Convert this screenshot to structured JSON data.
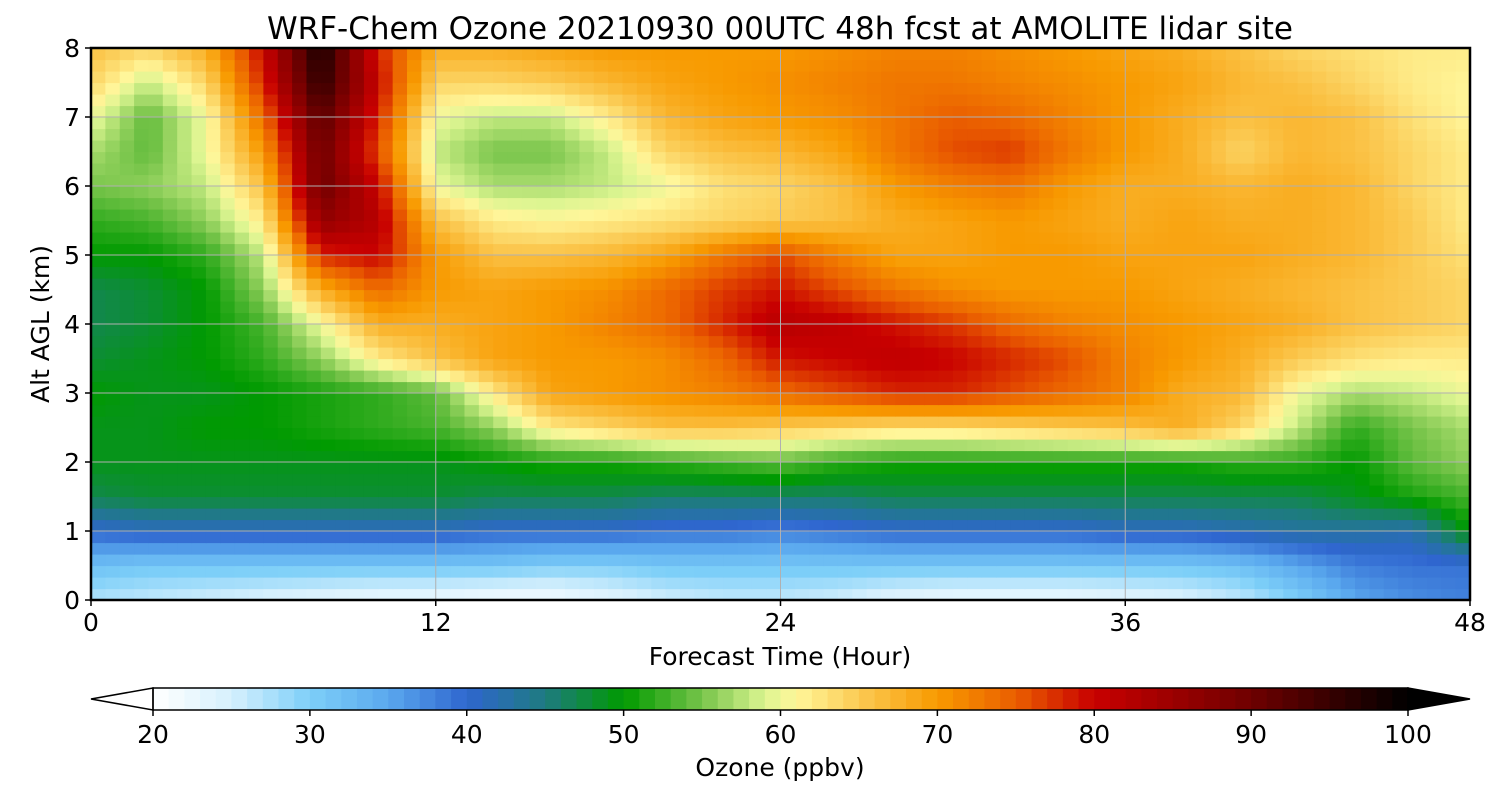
{
  "chart_data": {
    "type": "heatmap",
    "title": "WRF-Chem Ozone  20210930 00UTC 48h fcst at AMOLITE lidar site",
    "xlabel": "Forecast Time (Hour)",
    "ylabel": "Alt AGL (km)",
    "xlim": [
      0,
      48
    ],
    "ylim": [
      0,
      8
    ],
    "xticks": [
      "0",
      "12",
      "24",
      "36",
      "48"
    ],
    "yticks": [
      "0",
      "1",
      "2",
      "3",
      "4",
      "5",
      "6",
      "7",
      "8"
    ],
    "grid": true,
    "x": [
      0,
      2,
      4,
      6,
      8,
      10,
      12,
      14,
      16,
      18,
      20,
      22,
      24,
      26,
      28,
      30,
      32,
      34,
      36,
      38,
      40,
      42,
      44,
      46,
      48
    ],
    "y": [
      0,
      0.5,
      1,
      1.5,
      2,
      2.5,
      3,
      3.5,
      4,
      4.5,
      5,
      5.5,
      6,
      6.5,
      7,
      7.5,
      8
    ],
    "z": [
      [
        27,
        26,
        25,
        24,
        23,
        22,
        22,
        21,
        21,
        23,
        25,
        26,
        26,
        25,
        23,
        22,
        22,
        22,
        23,
        24,
        26,
        30,
        35,
        37,
        38
      ],
      [
        32,
        31,
        31,
        31,
        31,
        31,
        31,
        31,
        30,
        30,
        31,
        31,
        31,
        31,
        31,
        31,
        31,
        31,
        31,
        31,
        32,
        35,
        38,
        39,
        39
      ],
      [
        40,
        41,
        41,
        41,
        41,
        41,
        41,
        40,
        40,
        40,
        39,
        39,
        38,
        39,
        40,
        40,
        40,
        40,
        41,
        41,
        42,
        43,
        43,
        42,
        50
      ],
      [
        47,
        48,
        48,
        48,
        48,
        48,
        48,
        47,
        47,
        47,
        46,
        46,
        46,
        46,
        47,
        47,
        47,
        47,
        47,
        47,
        47,
        47,
        49,
        51,
        53
      ],
      [
        49,
        49,
        49,
        49,
        49,
        49,
        49,
        50,
        51,
        51,
        52,
        53,
        54,
        52,
        51,
        51,
        51,
        51,
        51,
        51,
        52,
        52,
        50,
        54,
        56
      ],
      [
        49,
        49,
        50,
        50,
        51,
        52,
        53,
        56,
        62,
        64,
        66,
        66,
        65,
        64,
        63,
        63,
        64,
        65,
        66,
        68,
        64,
        58,
        52,
        55,
        57
      ],
      [
        50,
        49,
        49,
        50,
        51,
        52,
        54,
        62,
        69,
        70,
        71,
        72,
        74,
        76,
        78,
        78,
        76,
        74,
        72,
        68,
        67,
        60,
        57,
        58,
        60
      ],
      [
        48,
        49,
        50,
        52,
        56,
        62,
        66,
        69,
        70,
        70,
        71,
        74,
        79,
        80,
        81,
        80,
        78,
        76,
        72,
        70,
        68,
        65,
        63,
        62,
        62
      ],
      [
        47,
        48,
        50,
        53,
        60,
        68,
        68,
        69,
        70,
        72,
        74,
        78,
        82,
        81,
        79,
        77,
        74,
        72,
        71,
        70,
        69,
        68,
        66,
        65,
        64
      ],
      [
        47,
        48,
        50,
        56,
        68,
        74,
        70,
        69,
        70,
        71,
        74,
        77,
        79,
        76,
        73,
        71,
        70,
        70,
        70,
        69,
        68,
        67,
        66,
        65,
        64
      ],
      [
        50,
        50,
        52,
        58,
        78,
        80,
        70,
        66,
        66,
        67,
        69,
        73,
        76,
        72,
        69,
        69,
        70,
        70,
        69,
        69,
        69,
        68,
        67,
        65,
        63
      ],
      [
        52,
        53,
        56,
        62,
        86,
        82,
        66,
        62,
        61,
        62,
        63,
        64,
        65,
        66,
        68,
        69,
        70,
        69,
        68,
        69,
        68,
        68,
        67,
        65,
        62
      ],
      [
        55,
        56,
        58,
        66,
        90,
        80,
        60,
        57,
        57,
        58,
        60,
        63,
        64,
        66,
        70,
        72,
        73,
        70,
        68,
        68,
        67,
        68,
        67,
        64,
        62
      ],
      [
        57,
        54,
        60,
        70,
        90,
        76,
        58,
        55,
        55,
        58,
        64,
        66,
        67,
        69,
        73,
        76,
        77,
        73,
        70,
        68,
        64,
        67,
        66,
        64,
        62
      ],
      [
        60,
        54,
        60,
        74,
        92,
        78,
        60,
        58,
        58,
        62,
        67,
        69,
        70,
        71,
        73,
        75,
        74,
        72,
        70,
        68,
        66,
        67,
        66,
        63,
        61
      ],
      [
        64,
        58,
        64,
        78,
        96,
        80,
        64,
        64,
        65,
        67,
        69,
        70,
        71,
        72,
        73,
        73,
        72,
        71,
        70,
        69,
        67,
        66,
        64,
        62,
        61
      ],
      [
        66,
        64,
        68,
        80,
        98,
        78,
        68,
        68,
        69,
        70,
        70,
        70,
        70,
        71,
        72,
        72,
        71,
        70,
        69,
        68,
        66,
        64,
        63,
        62,
        62
      ]
    ],
    "colorbar": {
      "label": "Ozone  (ppbv)",
      "min": 20,
      "max": 100,
      "extend": "both",
      "ticks": [
        "20",
        "30",
        "40",
        "50",
        "60",
        "70",
        "80",
        "90",
        "100"
      ],
      "colors": [
        {
          "v": 20,
          "c": "#ffffff"
        },
        {
          "v": 25,
          "c": "#d6f0fd"
        },
        {
          "v": 30,
          "c": "#7dcff8"
        },
        {
          "v": 35,
          "c": "#5aa8ee"
        },
        {
          "v": 40,
          "c": "#2f66cf"
        },
        {
          "v": 45,
          "c": "#1e7b80"
        },
        {
          "v": 50,
          "c": "#009a00"
        },
        {
          "v": 55,
          "c": "#77c44a"
        },
        {
          "v": 59,
          "c": "#dcf591"
        },
        {
          "v": 61,
          "c": "#fff69a"
        },
        {
          "v": 65,
          "c": "#fbca53"
        },
        {
          "v": 70,
          "c": "#f89a00"
        },
        {
          "v": 75,
          "c": "#ea5e00"
        },
        {
          "v": 80,
          "c": "#c80000"
        },
        {
          "v": 90,
          "c": "#6e0000"
        },
        {
          "v": 100,
          "c": "#000000"
        }
      ]
    }
  }
}
